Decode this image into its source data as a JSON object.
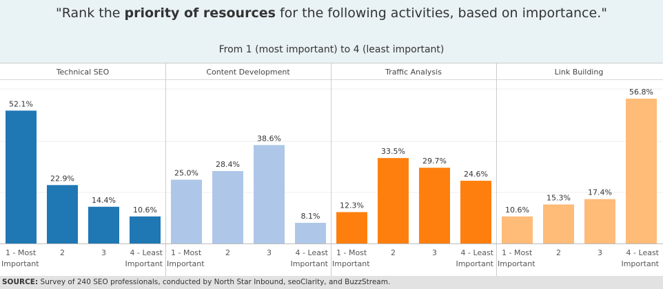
{
  "header": {
    "title_before": "\"Rank the ",
    "title_bold": "priority of resources",
    "title_after": " for the following activities, based on importance.\"",
    "subtitle": "From 1 (most important) to 4 (least important)"
  },
  "footer": {
    "source_label": "SOURCE:",
    "source_text": "Survey of 240 SEO professionals, conducted by North Star Inbound, seoClarity, and BuzzStream."
  },
  "chart_data": {
    "type": "bar",
    "ylim": [
      0,
      60
    ],
    "grid": true,
    "categories": [
      "1 - Most Important",
      "2",
      "3",
      "4 - Least Important"
    ],
    "panels": [
      {
        "name": "Technical SEO",
        "color": "#1f77b4",
        "values": [
          52.1,
          22.9,
          14.4,
          10.6
        ],
        "labels": [
          "52.1%",
          "22.9%",
          "14.4%",
          "10.6%"
        ]
      },
      {
        "name": "Content Development",
        "color": "#aec7e8",
        "values": [
          25.0,
          28.4,
          38.6,
          8.1
        ],
        "labels": [
          "25.0%",
          "28.4%",
          "38.6%",
          "8.1%"
        ]
      },
      {
        "name": "Traffic Analysis",
        "color": "#ff7f0e",
        "values": [
          12.3,
          33.5,
          29.7,
          24.6
        ],
        "labels": [
          "12.3%",
          "33.5%",
          "29.7%",
          "24.6%"
        ]
      },
      {
        "name": "Link Building",
        "color": "#ffbb78",
        "values": [
          10.6,
          15.3,
          17.4,
          56.8
        ],
        "labels": [
          "10.6%",
          "15.3%",
          "17.4%",
          "56.8%"
        ]
      }
    ]
  }
}
